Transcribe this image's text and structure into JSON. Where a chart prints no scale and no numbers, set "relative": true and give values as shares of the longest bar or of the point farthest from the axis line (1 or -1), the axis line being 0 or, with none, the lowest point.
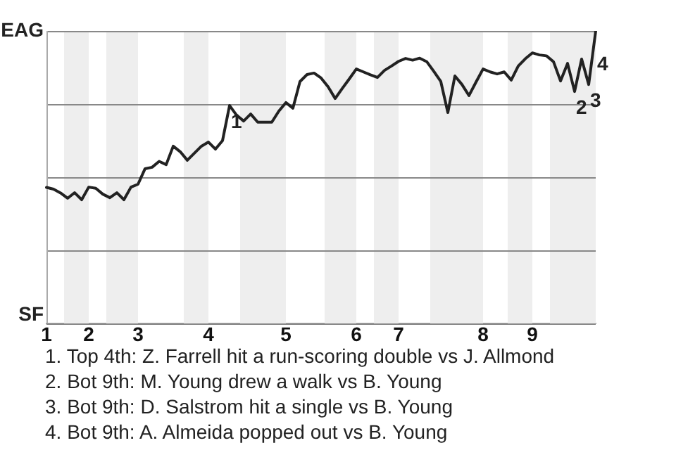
{
  "chart_data": {
    "type": "line",
    "relative": true,
    "categories": [
      "1",
      null,
      null,
      null,
      null,
      null,
      "2",
      null,
      null,
      null,
      null,
      null,
      null,
      "3",
      null,
      null,
      null,
      null,
      null,
      null,
      null,
      null,
      null,
      "4",
      null,
      null,
      null,
      null,
      null,
      null,
      null,
      null,
      null,
      null,
      "5",
      null,
      null,
      null,
      null,
      null,
      null,
      null,
      null,
      null,
      "6",
      null,
      null,
      null,
      null,
      null,
      "7",
      null,
      null,
      null,
      null,
      null,
      null,
      null,
      null,
      null,
      null,
      null,
      "8",
      null,
      null,
      null,
      null,
      null,
      null,
      "9",
      null,
      null,
      null,
      null,
      null,
      null,
      null,
      null,
      null
    ],
    "series": [
      {
        "color": "#222222",
        "values": [
          0.465,
          0.459,
          0.446,
          0.428,
          0.447,
          0.423,
          0.466,
          0.462,
          0.442,
          0.43,
          0.447,
          0.423,
          0.466,
          0.476,
          0.529,
          0.534,
          0.554,
          0.543,
          0.606,
          0.587,
          0.558,
          0.582,
          0.606,
          0.62,
          0.596,
          0.625,
          0.745,
          0.712,
          0.692,
          0.716,
          0.688,
          0.688,
          0.688,
          0.726,
          0.755,
          0.736,
          0.827,
          0.851,
          0.856,
          0.839,
          0.809,
          0.769,
          0.803,
          0.836,
          0.87,
          0.86,
          0.85,
          0.841,
          0.865,
          0.88,
          0.896,
          0.906,
          0.9,
          0.907,
          0.895,
          0.862,
          0.827,
          0.721,
          0.846,
          0.817,
          0.779,
          0.825,
          0.87,
          0.86,
          0.853,
          0.86,
          0.832,
          0.88,
          0.905,
          0.925,
          0.918,
          0.915,
          0.895,
          0.829,
          0.889,
          0.793,
          0.904,
          0.817,
          1
        ]
      }
    ],
    "grid": "y",
    "marker": "none",
    "line_style": "solid",
    "legend": false,
    "annotations": [
      "EAG",
      "SF",
      {
        "text": "1",
        "y": 0.745
      },
      {
        "text": "2",
        "y": 0.793
      },
      {
        "text": "3",
        "y": 0.817
      },
      {
        "text": "4",
        "y": 1
      },
      "1. Top 4th: Z. Farrell hit a run-scoring double vs J. Allmond",
      "2. Bot 9th: M. Young drew a walk vs B. Young",
      "3. Bot 9th: D. Salstrom hit a single vs B. Young",
      "4. Bot 9th: A. Almeida popped out vs B. Young"
    ]
  }
}
